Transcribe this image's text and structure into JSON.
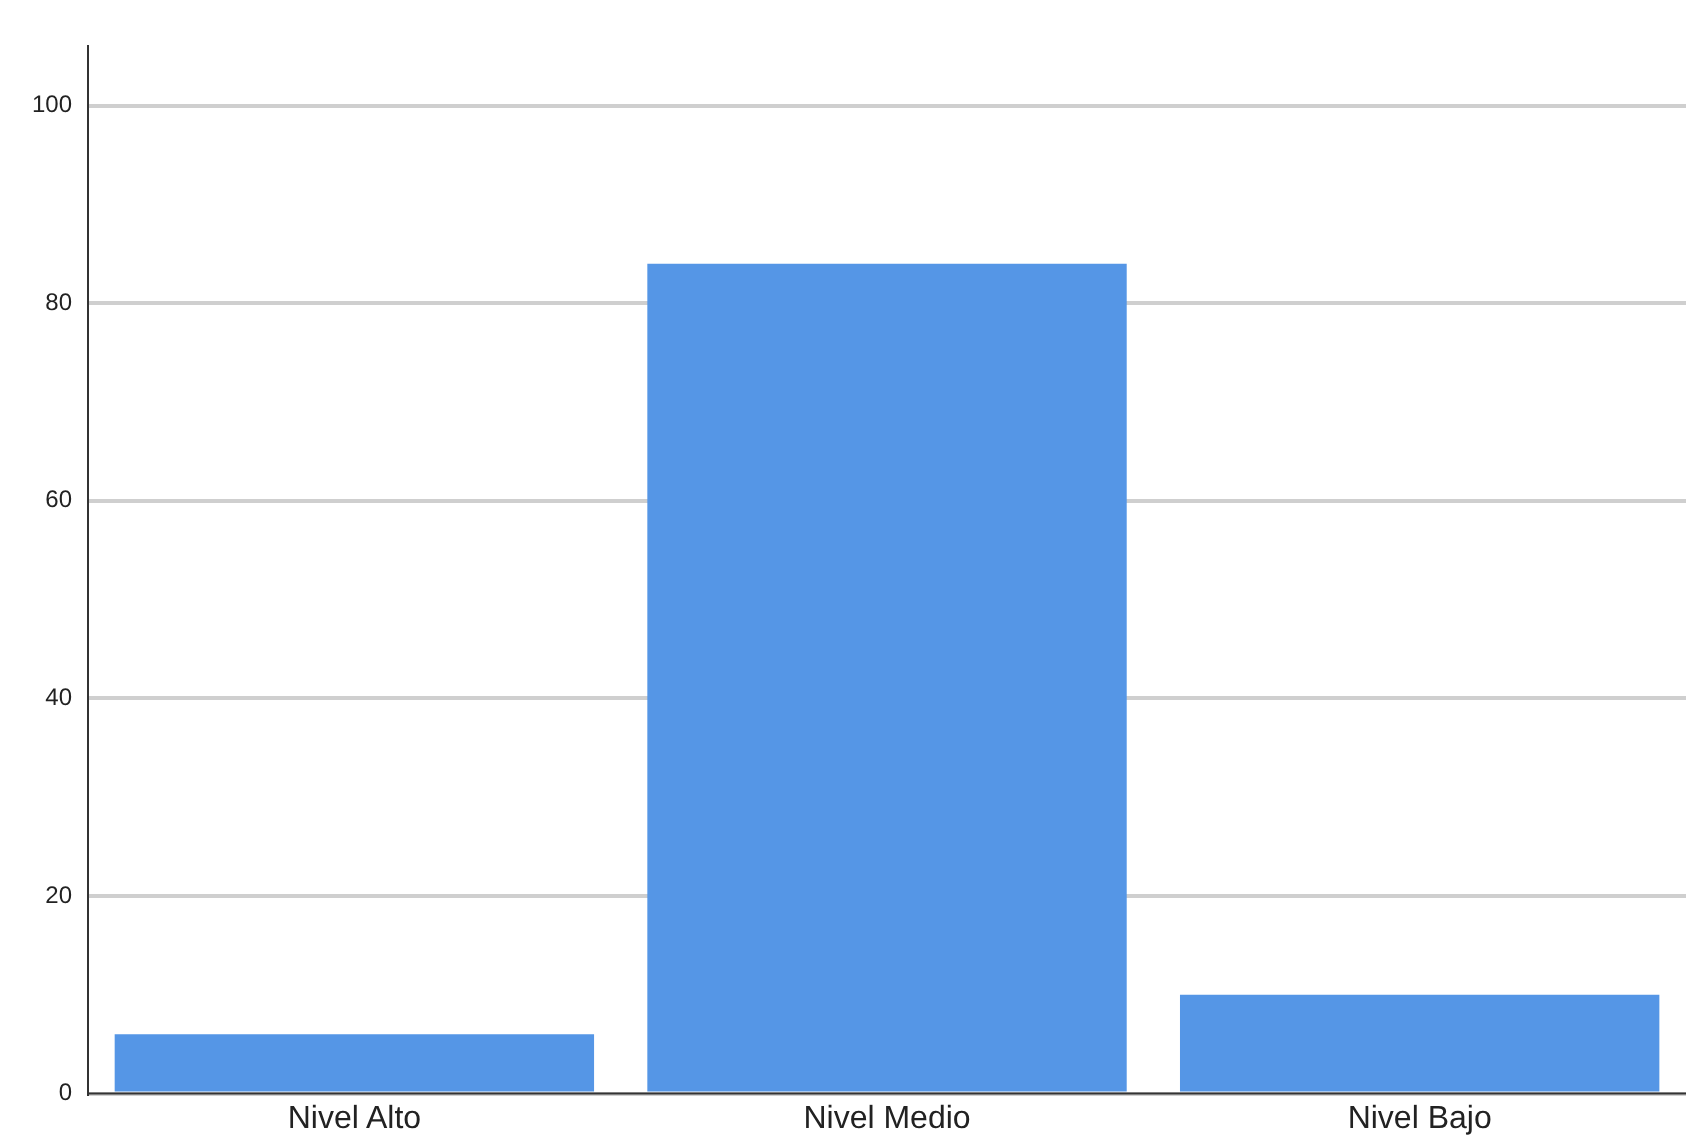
{
  "chart_data": {
    "type": "bar",
    "categories": [
      "Nivel Alto",
      "Nivel Medio",
      "Nivel Bajo"
    ],
    "values": [
      6,
      84,
      10
    ],
    "color": "#5596e6",
    "ylim": [
      0,
      106
    ],
    "yticks": [
      0,
      20,
      40,
      60,
      80,
      100
    ],
    "grid": "y",
    "legend": false
  }
}
